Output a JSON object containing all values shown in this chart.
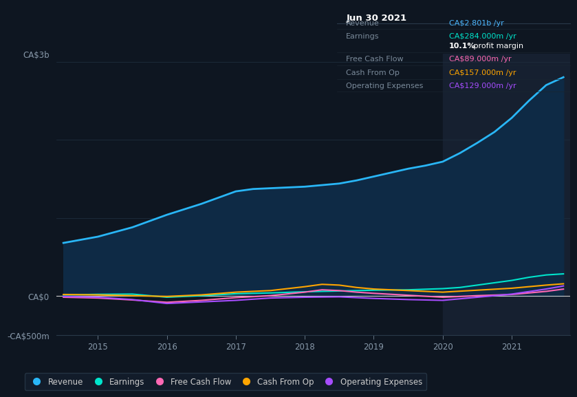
{
  "background_color": "#0e1621",
  "plot_bg_color": "#0e1621",
  "highlight_bg_color": "#162030",
  "title_text": "Jun 30 2021",
  "info_box_bg": "#080d14",
  "info_rows": [
    {
      "label": "Revenue",
      "value": "CA$2.801b /yr",
      "value_color": "#4db8ff"
    },
    {
      "label": "Earnings",
      "value": "CA$284.000m /yr",
      "value_color": "#00e5cc"
    },
    {
      "label": "",
      "value": "10.1% profit margin",
      "value_color": "#ffffff",
      "bold_part": "10.1%"
    },
    {
      "label": "Free Cash Flow",
      "value": "CA$89.000m /yr",
      "value_color": "#ff69b4"
    },
    {
      "label": "Cash From Op",
      "value": "CA$157.000m /yr",
      "value_color": "#ffa500"
    },
    {
      "label": "Operating Expenses",
      "value": "CA$129.000m /yr",
      "value_color": "#a64dff"
    }
  ],
  "ylabel_top": "CA$3b",
  "ylabel_zero": "CA$0",
  "ylabel_neg": "-CA$500m",
  "xlabels": [
    "2015",
    "2016",
    "2017",
    "2018",
    "2019",
    "2020",
    "2021"
  ],
  "xtick_pos": [
    2015,
    2016,
    2017,
    2018,
    2019,
    2020,
    2021
  ],
  "ylim": [
    -500,
    3100
  ],
  "xlim_min": 2014.4,
  "xlim_max": 2021.85,
  "highlight_x_start": 2020.0,
  "highlight_x_end": 2021.9,
  "revenue": {
    "x": [
      2014.5,
      2014.75,
      2015.0,
      2015.25,
      2015.5,
      2015.75,
      2016.0,
      2016.25,
      2016.5,
      2016.75,
      2017.0,
      2017.25,
      2017.5,
      2017.75,
      2018.0,
      2018.25,
      2018.5,
      2018.75,
      2019.0,
      2019.25,
      2019.5,
      2019.75,
      2020.0,
      2020.25,
      2020.5,
      2020.75,
      2021.0,
      2021.25,
      2021.5,
      2021.75
    ],
    "y": [
      680,
      720,
      760,
      820,
      880,
      960,
      1040,
      1110,
      1180,
      1260,
      1340,
      1370,
      1380,
      1390,
      1400,
      1420,
      1440,
      1480,
      1530,
      1580,
      1630,
      1670,
      1720,
      1830,
      1960,
      2100,
      2280,
      2500,
      2700,
      2801
    ],
    "color": "#29b6f6",
    "fill_color": "#0e2a45",
    "lw": 2.0
  },
  "earnings": {
    "x": [
      2014.5,
      2014.75,
      2015.0,
      2015.5,
      2016.0,
      2016.5,
      2017.0,
      2017.5,
      2018.0,
      2018.5,
      2019.0,
      2019.5,
      2020.0,
      2020.25,
      2020.5,
      2020.75,
      2021.0,
      2021.25,
      2021.5,
      2021.75
    ],
    "y": [
      15,
      18,
      22,
      25,
      -15,
      5,
      30,
      40,
      55,
      65,
      75,
      80,
      95,
      110,
      140,
      170,
      200,
      240,
      270,
      284
    ],
    "color": "#00e5cc",
    "lw": 1.5
  },
  "free_cash_flow": {
    "x": [
      2014.5,
      2015.0,
      2015.5,
      2016.0,
      2016.5,
      2017.0,
      2017.5,
      2018.0,
      2018.25,
      2018.5,
      2018.75,
      2019.0,
      2019.5,
      2020.0,
      2020.5,
      2021.0,
      2021.5,
      2021.75
    ],
    "y": [
      -15,
      -25,
      -50,
      -80,
      -55,
      -20,
      5,
      50,
      80,
      70,
      50,
      35,
      10,
      -15,
      5,
      20,
      60,
      89
    ],
    "color": "#ff69b4",
    "lw": 1.5
  },
  "cash_from_op": {
    "x": [
      2014.5,
      2015.0,
      2015.5,
      2016.0,
      2016.5,
      2017.0,
      2017.5,
      2018.0,
      2018.25,
      2018.5,
      2018.75,
      2019.0,
      2019.5,
      2020.0,
      2020.5,
      2021.0,
      2021.5,
      2021.75
    ],
    "y": [
      20,
      15,
      5,
      -5,
      15,
      50,
      70,
      120,
      150,
      140,
      110,
      90,
      70,
      50,
      75,
      100,
      140,
      157
    ],
    "color": "#ffa500",
    "lw": 1.5
  },
  "operating_expenses": {
    "x": [
      2014.5,
      2015.0,
      2015.5,
      2016.0,
      2016.5,
      2017.0,
      2017.5,
      2018.0,
      2018.5,
      2019.0,
      2019.5,
      2020.0,
      2020.5,
      2021.0,
      2021.5,
      2021.75
    ],
    "y": [
      -5,
      -15,
      -45,
      -95,
      -75,
      -55,
      -25,
      -15,
      -10,
      -30,
      -45,
      -55,
      -15,
      25,
      90,
      129
    ],
    "color": "#a64dff",
    "lw": 1.5
  },
  "legend": [
    {
      "label": "Revenue",
      "color": "#29b6f6"
    },
    {
      "label": "Earnings",
      "color": "#00e5cc"
    },
    {
      "label": "Free Cash Flow",
      "color": "#ff69b4"
    },
    {
      "label": "Cash From Op",
      "color": "#ffa500"
    },
    {
      "label": "Operating Expenses",
      "color": "#a64dff"
    }
  ],
  "grid_color": "#1e2d3d",
  "label_color": "#8899aa",
  "spine_color": "#2a3a4a"
}
